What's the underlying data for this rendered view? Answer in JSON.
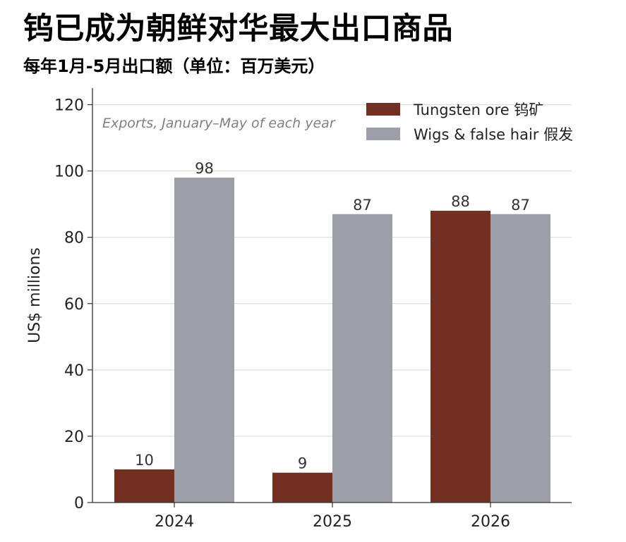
{
  "title": "钨已成为朝鲜对华最大出口商品",
  "subtitle": "每年1月-5月出口额（单位：百万美元）",
  "chart_data": {
    "type": "bar",
    "categories": [
      "2024",
      "2025",
      "2026"
    ],
    "series": [
      {
        "name": "Tungsten ore 钨矿",
        "values": [
          10,
          9,
          88
        ],
        "color": "#722f22"
      },
      {
        "name": "Wigs & false hair 假发",
        "values": [
          98,
          87,
          87
        ],
        "color": "#9ba0a8"
      }
    ],
    "annotation": "Exports, January–May of each year",
    "ylabel": "US$ millions",
    "xlabel": "",
    "ylim": [
      0,
      125
    ],
    "yticks": [
      0,
      20,
      40,
      60,
      80,
      100,
      120
    ],
    "grid": true,
    "legend_position": "top-right"
  }
}
